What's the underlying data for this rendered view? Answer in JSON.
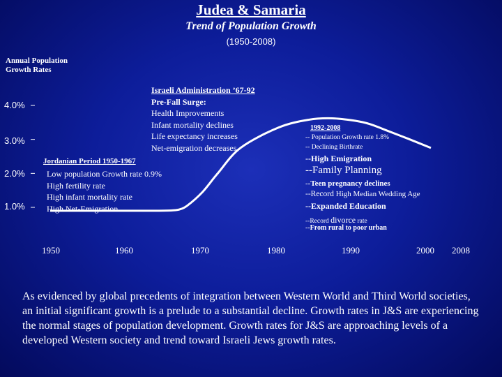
{
  "title": "Judea & Samaria",
  "subtitle": "Trend of Population Growth",
  "period": "(1950-2008)",
  "y_axis_label": [
    "Annual Population",
    "Growth Rates"
  ],
  "chart_data": {
    "type": "line",
    "title": "Judea & Samaria",
    "ylabel": "Annual Population Growth Rates",
    "x_ticks": [
      "1950",
      "1960",
      "1970",
      "1980",
      "1990",
      "2000",
      "2008"
    ],
    "y_ticks": [
      "1.0%",
      "2.0%",
      "3.0%",
      "4.0%"
    ],
    "xlim": [
      1950,
      2008
    ],
    "ylim": [
      0.5,
      4.5
    ],
    "series": [
      {
        "x": [
          1950,
          1955,
          1960,
          1964,
          1966,
          1967,
          1968,
          1970,
          1972,
          1975,
          1980,
          1984,
          1987,
          1990,
          1992,
          1994,
          1997,
          2000
        ],
        "y": [
          0.9,
          0.9,
          0.9,
          0.9,
          0.91,
          0.94,
          1.05,
          1.45,
          2.0,
          2.75,
          3.35,
          3.58,
          3.62,
          3.55,
          3.45,
          3.28,
          3.02,
          2.75
        ]
      }
    ]
  },
  "annotations": {
    "jordanian": {
      "heading": "Jordanian Period 1950-1967",
      "lines": [
        "Low population Growth rate  0.9%",
        "High fertility rate",
        "High infant mortality rate",
        "High Net-Emigration"
      ]
    },
    "israeli": {
      "heading": "Israeli Administration ’67-92",
      "subheading": "Pre-Fall Surge:",
      "lines": [
        "Health Improvements",
        "Infant mortality declines",
        "Life expectancy increases",
        "Net-emigration decreases"
      ]
    },
    "recent": {
      "heading": "1992-2008",
      "lines": [
        "-- Population Growth rate 1.8%",
        "-- Declining Birthrate"
      ],
      "emigration": "--High Emigration",
      "family_planning": "--Family Planning",
      "teen_pregnancy": "--Teen pregnancy declines",
      "wedding_age_prefix": "--Record ",
      "wedding_age_rest": "High Median Wedding Age",
      "education": "--Expanded Education",
      "divorce_a": "--Record ",
      "divorce_b": "divorce",
      "divorce_c": " rate",
      "urban": "--From rural to poor urban"
    }
  },
  "footer_text": "As evidenced by global precedents of integration between Western World and Third World societies, an initial significant growth is a prelude to a substantial decline. Growth rates in J&S are experiencing the normal stages of population development. Growth rates for J&S are approaching levels of a developed Western society and trend toward Israeli Jews growth rates.",
  "colors": {
    "background": "#0d1d9a",
    "line": "#ffffff",
    "text": "#ffffff"
  }
}
